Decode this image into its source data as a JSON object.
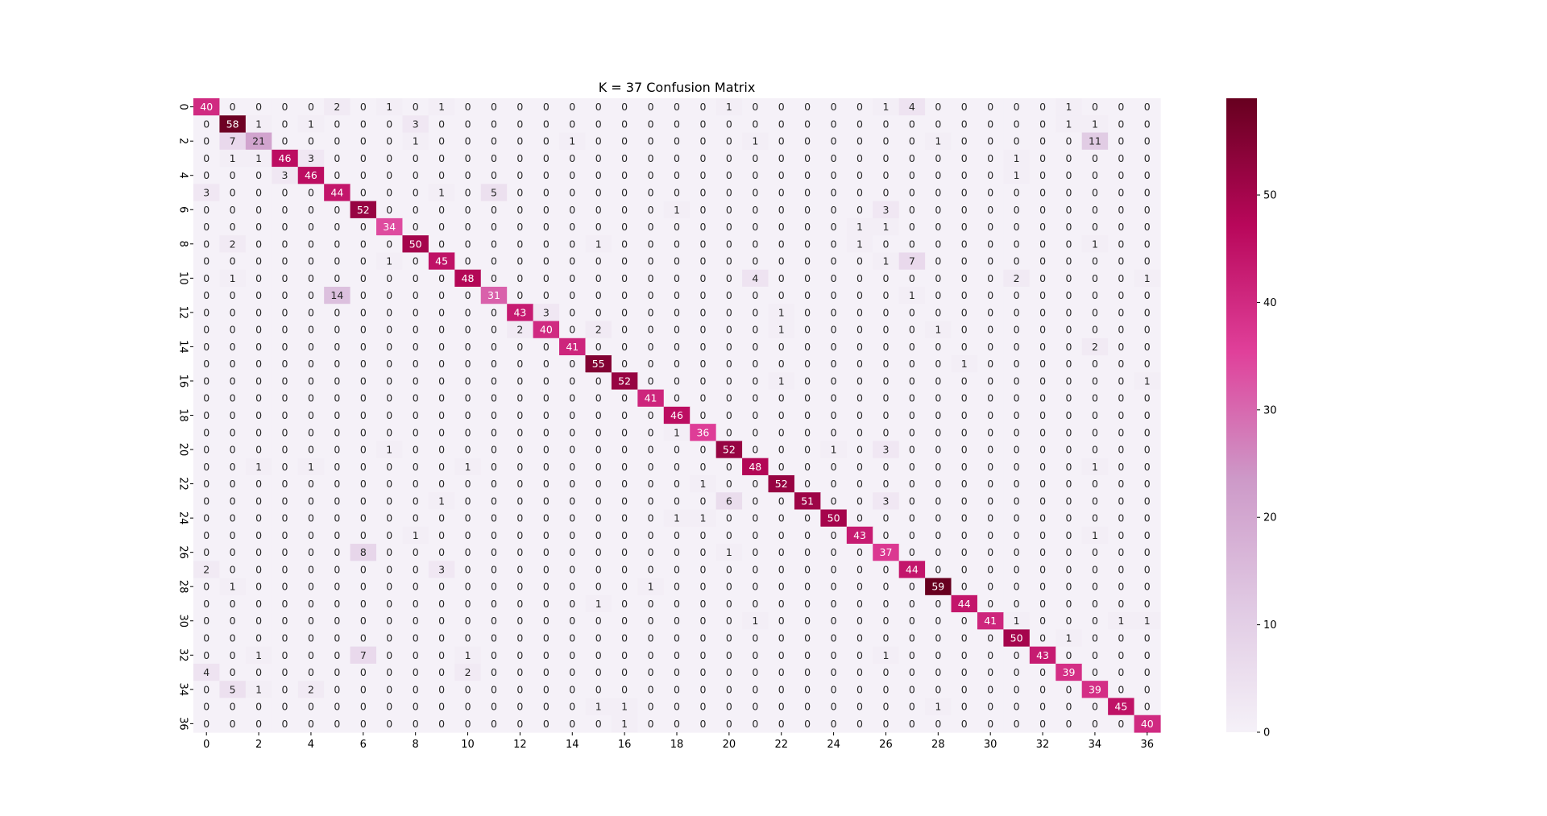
{
  "chart_data": {
    "type": "heatmap",
    "title": "K = 37 Confusion Matrix",
    "xlabel": "",
    "ylabel": "",
    "x_ticks": [
      "0",
      "2",
      "4",
      "6",
      "8",
      "10",
      "12",
      "14",
      "16",
      "18",
      "20",
      "22",
      "24",
      "26",
      "28",
      "30",
      "32",
      "34",
      "36"
    ],
    "y_ticks": [
      "0",
      "2",
      "4",
      "6",
      "8",
      "10",
      "12",
      "14",
      "16",
      "18",
      "20",
      "22",
      "24",
      "26",
      "28",
      "30",
      "32",
      "34",
      "36"
    ],
    "colorbar": {
      "min": 0,
      "max": 59,
      "ticks": [
        "0",
        "10",
        "20",
        "30",
        "40",
        "50"
      ]
    },
    "colormap": [
      "#f5f1f8",
      "#e0c9e3",
      "#cd99c8",
      "#e0409a",
      "#b8075a",
      "#67001f"
    ],
    "matrix": [
      [
        40,
        0,
        0,
        0,
        0,
        2,
        0,
        1,
        0,
        1,
        0,
        0,
        0,
        0,
        0,
        0,
        0,
        0,
        0,
        0,
        1,
        0,
        0,
        0,
        0,
        0,
        1,
        4,
        0,
        0,
        0,
        0,
        0,
        1,
        0,
        0,
        0
      ],
      [
        0,
        58,
        1,
        0,
        1,
        0,
        0,
        0,
        3,
        0,
        0,
        0,
        0,
        0,
        0,
        0,
        0,
        0,
        0,
        0,
        0,
        0,
        0,
        0,
        0,
        0,
        0,
        0,
        0,
        0,
        0,
        0,
        0,
        1,
        1,
        0,
        0
      ],
      [
        0,
        7,
        21,
        0,
        0,
        0,
        0,
        0,
        1,
        0,
        0,
        0,
        0,
        0,
        1,
        0,
        0,
        0,
        0,
        0,
        0,
        1,
        0,
        0,
        0,
        0,
        0,
        0,
        1,
        0,
        0,
        0,
        0,
        0,
        11,
        0,
        0
      ],
      [
        0,
        1,
        1,
        46,
        3,
        0,
        0,
        0,
        0,
        0,
        0,
        0,
        0,
        0,
        0,
        0,
        0,
        0,
        0,
        0,
        0,
        0,
        0,
        0,
        0,
        0,
        0,
        0,
        0,
        0,
        0,
        1,
        0,
        0,
        0,
        0,
        0
      ],
      [
        0,
        0,
        0,
        3,
        46,
        0,
        0,
        0,
        0,
        0,
        0,
        0,
        0,
        0,
        0,
        0,
        0,
        0,
        0,
        0,
        0,
        0,
        0,
        0,
        0,
        0,
        0,
        0,
        0,
        0,
        0,
        1,
        0,
        0,
        0,
        0,
        0
      ],
      [
        3,
        0,
        0,
        0,
        0,
        44,
        0,
        0,
        0,
        1,
        0,
        5,
        0,
        0,
        0,
        0,
        0,
        0,
        0,
        0,
        0,
        0,
        0,
        0,
        0,
        0,
        0,
        0,
        0,
        0,
        0,
        0,
        0,
        0,
        0,
        0,
        0
      ],
      [
        0,
        0,
        0,
        0,
        0,
        0,
        52,
        0,
        0,
        0,
        0,
        0,
        0,
        0,
        0,
        0,
        0,
        0,
        1,
        0,
        0,
        0,
        0,
        0,
        0,
        0,
        3,
        0,
        0,
        0,
        0,
        0,
        0,
        0,
        0,
        0,
        0
      ],
      [
        0,
        0,
        0,
        0,
        0,
        0,
        0,
        34,
        0,
        0,
        0,
        0,
        0,
        0,
        0,
        0,
        0,
        0,
        0,
        0,
        0,
        0,
        0,
        0,
        0,
        1,
        1,
        0,
        0,
        0,
        0,
        0,
        0,
        0,
        0,
        0,
        0
      ],
      [
        0,
        2,
        0,
        0,
        0,
        0,
        0,
        0,
        50,
        0,
        0,
        0,
        0,
        0,
        0,
        1,
        0,
        0,
        0,
        0,
        0,
        0,
        0,
        0,
        0,
        1,
        0,
        0,
        0,
        0,
        0,
        0,
        0,
        0,
        1,
        0,
        0
      ],
      [
        0,
        0,
        0,
        0,
        0,
        0,
        0,
        1,
        0,
        45,
        0,
        0,
        0,
        0,
        0,
        0,
        0,
        0,
        0,
        0,
        0,
        0,
        0,
        0,
        0,
        0,
        1,
        7,
        0,
        0,
        0,
        0,
        0,
        0,
        0,
        0,
        0
      ],
      [
        0,
        1,
        0,
        0,
        0,
        0,
        0,
        0,
        0,
        0,
        48,
        0,
        0,
        0,
        0,
        0,
        0,
        0,
        0,
        0,
        0,
        4,
        0,
        0,
        0,
        0,
        0,
        0,
        0,
        0,
        0,
        2,
        0,
        0,
        0,
        0,
        1
      ],
      [
        0,
        0,
        0,
        0,
        0,
        14,
        0,
        0,
        0,
        0,
        0,
        31,
        0,
        0,
        0,
        0,
        0,
        0,
        0,
        0,
        0,
        0,
        0,
        0,
        0,
        0,
        0,
        1,
        0,
        0,
        0,
        0,
        0,
        0,
        0,
        0,
        0
      ],
      [
        0,
        0,
        0,
        0,
        0,
        0,
        0,
        0,
        0,
        0,
        0,
        0,
        43,
        3,
        0,
        0,
        0,
        0,
        0,
        0,
        0,
        0,
        1,
        0,
        0,
        0,
        0,
        0,
        0,
        0,
        0,
        0,
        0,
        0,
        0,
        0,
        0
      ],
      [
        0,
        0,
        0,
        0,
        0,
        0,
        0,
        0,
        0,
        0,
        0,
        0,
        2,
        40,
        0,
        2,
        0,
        0,
        0,
        0,
        0,
        0,
        1,
        0,
        0,
        0,
        0,
        0,
        1,
        0,
        0,
        0,
        0,
        0,
        0,
        0,
        0
      ],
      [
        0,
        0,
        0,
        0,
        0,
        0,
        0,
        0,
        0,
        0,
        0,
        0,
        0,
        0,
        41,
        0,
        0,
        0,
        0,
        0,
        0,
        0,
        0,
        0,
        0,
        0,
        0,
        0,
        0,
        0,
        0,
        0,
        0,
        0,
        2,
        0,
        0
      ],
      [
        0,
        0,
        0,
        0,
        0,
        0,
        0,
        0,
        0,
        0,
        0,
        0,
        0,
        0,
        0,
        55,
        0,
        0,
        0,
        0,
        0,
        0,
        0,
        0,
        0,
        0,
        0,
        0,
        0,
        1,
        0,
        0,
        0,
        0,
        0,
        0,
        0
      ],
      [
        0,
        0,
        0,
        0,
        0,
        0,
        0,
        0,
        0,
        0,
        0,
        0,
        0,
        0,
        0,
        0,
        52,
        0,
        0,
        0,
        0,
        0,
        1,
        0,
        0,
        0,
        0,
        0,
        0,
        0,
        0,
        0,
        0,
        0,
        0,
        0,
        1
      ],
      [
        0,
        0,
        0,
        0,
        0,
        0,
        0,
        0,
        0,
        0,
        0,
        0,
        0,
        0,
        0,
        0,
        0,
        41,
        0,
        0,
        0,
        0,
        0,
        0,
        0,
        0,
        0,
        0,
        0,
        0,
        0,
        0,
        0,
        0,
        0,
        0,
        0
      ],
      [
        0,
        0,
        0,
        0,
        0,
        0,
        0,
        0,
        0,
        0,
        0,
        0,
        0,
        0,
        0,
        0,
        0,
        0,
        46,
        0,
        0,
        0,
        0,
        0,
        0,
        0,
        0,
        0,
        0,
        0,
        0,
        0,
        0,
        0,
        0,
        0,
        0
      ],
      [
        0,
        0,
        0,
        0,
        0,
        0,
        0,
        0,
        0,
        0,
        0,
        0,
        0,
        0,
        0,
        0,
        0,
        0,
        1,
        36,
        0,
        0,
        0,
        0,
        0,
        0,
        0,
        0,
        0,
        0,
        0,
        0,
        0,
        0,
        0,
        0,
        0
      ],
      [
        0,
        0,
        0,
        0,
        0,
        0,
        0,
        1,
        0,
        0,
        0,
        0,
        0,
        0,
        0,
        0,
        0,
        0,
        0,
        0,
        52,
        0,
        0,
        0,
        1,
        0,
        3,
        0,
        0,
        0,
        0,
        0,
        0,
        0,
        0,
        0,
        0
      ],
      [
        0,
        0,
        1,
        0,
        1,
        0,
        0,
        0,
        0,
        0,
        1,
        0,
        0,
        0,
        0,
        0,
        0,
        0,
        0,
        0,
        0,
        48,
        0,
        0,
        0,
        0,
        0,
        0,
        0,
        0,
        0,
        0,
        0,
        0,
        1,
        0,
        0
      ],
      [
        0,
        0,
        0,
        0,
        0,
        0,
        0,
        0,
        0,
        0,
        0,
        0,
        0,
        0,
        0,
        0,
        0,
        0,
        0,
        1,
        0,
        0,
        52,
        0,
        0,
        0,
        0,
        0,
        0,
        0,
        0,
        0,
        0,
        0,
        0,
        0,
        0
      ],
      [
        0,
        0,
        0,
        0,
        0,
        0,
        0,
        0,
        0,
        1,
        0,
        0,
        0,
        0,
        0,
        0,
        0,
        0,
        0,
        0,
        6,
        0,
        0,
        51,
        0,
        0,
        3,
        0,
        0,
        0,
        0,
        0,
        0,
        0,
        0,
        0,
        0
      ],
      [
        0,
        0,
        0,
        0,
        0,
        0,
        0,
        0,
        0,
        0,
        0,
        0,
        0,
        0,
        0,
        0,
        0,
        0,
        1,
        1,
        0,
        0,
        0,
        0,
        50,
        0,
        0,
        0,
        0,
        0,
        0,
        0,
        0,
        0,
        0,
        0,
        0
      ],
      [
        0,
        0,
        0,
        0,
        0,
        0,
        0,
        0,
        1,
        0,
        0,
        0,
        0,
        0,
        0,
        0,
        0,
        0,
        0,
        0,
        0,
        0,
        0,
        0,
        0,
        43,
        0,
        0,
        0,
        0,
        0,
        0,
        0,
        0,
        1,
        0,
        0
      ],
      [
        0,
        0,
        0,
        0,
        0,
        0,
        8,
        0,
        0,
        0,
        0,
        0,
        0,
        0,
        0,
        0,
        0,
        0,
        0,
        0,
        1,
        0,
        0,
        0,
        0,
        0,
        37,
        0,
        0,
        0,
        0,
        0,
        0,
        0,
        0,
        0,
        0
      ],
      [
        2,
        0,
        0,
        0,
        0,
        0,
        0,
        0,
        0,
        3,
        0,
        0,
        0,
        0,
        0,
        0,
        0,
        0,
        0,
        0,
        0,
        0,
        0,
        0,
        0,
        0,
        0,
        44,
        0,
        0,
        0,
        0,
        0,
        0,
        0,
        0,
        0
      ],
      [
        0,
        1,
        0,
        0,
        0,
        0,
        0,
        0,
        0,
        0,
        0,
        0,
        0,
        0,
        0,
        0,
        0,
        1,
        0,
        0,
        0,
        0,
        0,
        0,
        0,
        0,
        0,
        0,
        59,
        0,
        0,
        0,
        0,
        0,
        0,
        0,
        0
      ],
      [
        0,
        0,
        0,
        0,
        0,
        0,
        0,
        0,
        0,
        0,
        0,
        0,
        0,
        0,
        0,
        1,
        0,
        0,
        0,
        0,
        0,
        0,
        0,
        0,
        0,
        0,
        0,
        0,
        0,
        44,
        0,
        0,
        0,
        0,
        0,
        0,
        0
      ],
      [
        0,
        0,
        0,
        0,
        0,
        0,
        0,
        0,
        0,
        0,
        0,
        0,
        0,
        0,
        0,
        0,
        0,
        0,
        0,
        0,
        0,
        1,
        0,
        0,
        0,
        0,
        0,
        0,
        0,
        0,
        41,
        1,
        0,
        0,
        0,
        1,
        1
      ],
      [
        0,
        0,
        0,
        0,
        0,
        0,
        0,
        0,
        0,
        0,
        0,
        0,
        0,
        0,
        0,
        0,
        0,
        0,
        0,
        0,
        0,
        0,
        0,
        0,
        0,
        0,
        0,
        0,
        0,
        0,
        0,
        50,
        0,
        1,
        0,
        0,
        0
      ],
      [
        0,
        0,
        1,
        0,
        0,
        0,
        7,
        0,
        0,
        0,
        1,
        0,
        0,
        0,
        0,
        0,
        0,
        0,
        0,
        0,
        0,
        0,
        0,
        0,
        0,
        0,
        1,
        0,
        0,
        0,
        0,
        0,
        43,
        0,
        0,
        0,
        0
      ],
      [
        4,
        0,
        0,
        0,
        0,
        0,
        0,
        0,
        0,
        0,
        2,
        0,
        0,
        0,
        0,
        0,
        0,
        0,
        0,
        0,
        0,
        0,
        0,
        0,
        0,
        0,
        0,
        0,
        0,
        0,
        0,
        0,
        0,
        39,
        0,
        0,
        0
      ],
      [
        0,
        5,
        1,
        0,
        2,
        0,
        0,
        0,
        0,
        0,
        0,
        0,
        0,
        0,
        0,
        0,
        0,
        0,
        0,
        0,
        0,
        0,
        0,
        0,
        0,
        0,
        0,
        0,
        0,
        0,
        0,
        0,
        0,
        0,
        39,
        0,
        0
      ],
      [
        0,
        0,
        0,
        0,
        0,
        0,
        0,
        0,
        0,
        0,
        0,
        0,
        0,
        0,
        0,
        1,
        1,
        0,
        0,
        0,
        0,
        0,
        0,
        0,
        0,
        0,
        0,
        0,
        1,
        0,
        0,
        0,
        0,
        0,
        0,
        45,
        0
      ],
      [
        0,
        0,
        0,
        0,
        0,
        0,
        0,
        0,
        0,
        0,
        0,
        0,
        0,
        0,
        0,
        0,
        1,
        0,
        0,
        0,
        0,
        0,
        0,
        0,
        0,
        0,
        0,
        0,
        0,
        0,
        0,
        0,
        0,
        0,
        0,
        0,
        40
      ]
    ]
  }
}
